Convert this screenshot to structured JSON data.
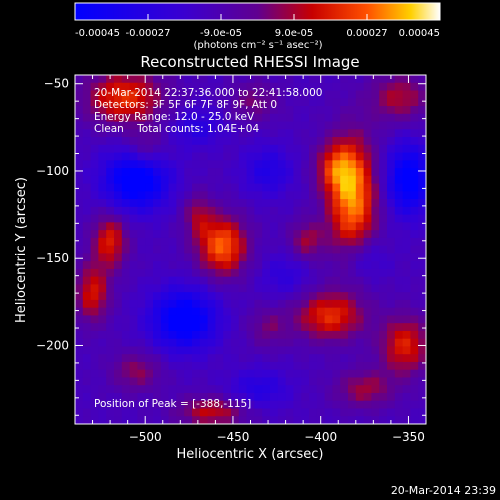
{
  "colorbar": {
    "tick_labels": [
      "-0.00045",
      "-0.00027",
      "-9.0e-05",
      "9.0e-05",
      "0.00027",
      "0.00045"
    ],
    "unit_text": "(photons cm⁻² s⁻¹ asec⁻²)"
  },
  "chart_data": {
    "type": "heatmap",
    "title": "Reconstructed RHESSI Image",
    "xlabel": "Heliocentric X (arcsec)",
    "ylabel": "Heliocentric Y (arcsec)",
    "xlim": [
      -540,
      -340
    ],
    "ylim": [
      -245,
      -45
    ],
    "x_ticks": [
      -500,
      -450,
      -400,
      -350
    ],
    "y_ticks": [
      -50,
      -100,
      -150,
      -200
    ],
    "zlim": [
      -0.00045,
      0.00045
    ],
    "colormap": "blue-purple-red-yellow-white",
    "peak": [
      -388,
      -115
    ],
    "blobs": [
      {
        "x": -382,
        "y": -115,
        "sx": 10,
        "sy": 24,
        "amp": 0.00045
      },
      {
        "x": -392,
        "y": -98,
        "sx": 8,
        "sy": 10,
        "amp": 0.00022
      },
      {
        "x": -456,
        "y": -143,
        "sx": 10,
        "sy": 12,
        "amp": 0.0004
      },
      {
        "x": -470,
        "y": -125,
        "sx": 6,
        "sy": 9,
        "amp": 0.00018
      },
      {
        "x": -512,
        "y": -58,
        "sx": 16,
        "sy": 11,
        "amp": 0.00033
      },
      {
        "x": -500,
        "y": -88,
        "sx": 8,
        "sy": 8,
        "amp": 0.00016
      },
      {
        "x": -520,
        "y": -140,
        "sx": 7,
        "sy": 11,
        "amp": 0.0003
      },
      {
        "x": -530,
        "y": -170,
        "sx": 7,
        "sy": 12,
        "amp": 0.00028
      },
      {
        "x": -395,
        "y": -183,
        "sx": 14,
        "sy": 10,
        "amp": 0.00032
      },
      {
        "x": -352,
        "y": -200,
        "sx": 10,
        "sy": 12,
        "amp": 0.0003
      },
      {
        "x": -408,
        "y": -140,
        "sx": 7,
        "sy": 8,
        "amp": 0.0002
      },
      {
        "x": -375,
        "y": -225,
        "sx": 12,
        "sy": 8,
        "amp": 0.0002
      },
      {
        "x": -462,
        "y": -238,
        "sx": 14,
        "sy": 6,
        "amp": 0.00025
      },
      {
        "x": -355,
        "y": -58,
        "sx": 12,
        "sy": 10,
        "amp": 0.00022
      },
      {
        "x": -438,
        "y": -60,
        "sx": 10,
        "sy": 8,
        "amp": 0.00015
      },
      {
        "x": -505,
        "y": -215,
        "sx": 10,
        "sy": 8,
        "amp": 0.00018
      },
      {
        "x": -430,
        "y": -190,
        "sx": 8,
        "sy": 8,
        "amp": 0.00014
      },
      {
        "x": -505,
        "y": -105,
        "sx": 13,
        "sy": 12,
        "amp": -0.00042
      },
      {
        "x": -478,
        "y": -185,
        "sx": 13,
        "sy": 12,
        "amp": -0.0004
      },
      {
        "x": -350,
        "y": -105,
        "sx": 9,
        "sy": 14,
        "amp": -0.00038
      },
      {
        "x": -430,
        "y": -100,
        "sx": 10,
        "sy": 10,
        "amp": -0.00018
      },
      {
        "x": -435,
        "y": -225,
        "sx": 12,
        "sy": 8,
        "amp": -0.00016
      },
      {
        "x": -470,
        "y": -75,
        "sx": 10,
        "sy": 8,
        "amp": -0.00015
      },
      {
        "x": -375,
        "y": -150,
        "sx": 9,
        "sy": 9,
        "amp": -0.00014
      },
      {
        "x": -420,
        "y": -160,
        "sx": 10,
        "sy": 9,
        "amp": -0.00012
      }
    ],
    "background": -0.00012
  },
  "info": {
    "time_range": "20-Mar-2014 22:37:36.000 to 22:41:58.000",
    "detectors": "Detectors: 3F 5F 6F 7F 8F 9F, Att 0",
    "energy": "Energy Range: 12.0 - 25.0 keV",
    "clean": "Clean    Total counts: 1.04E+04",
    "peak_text": "Position of Peak = [-388,-115]"
  },
  "footer_timestamp": "20-Mar-2014 23:39"
}
